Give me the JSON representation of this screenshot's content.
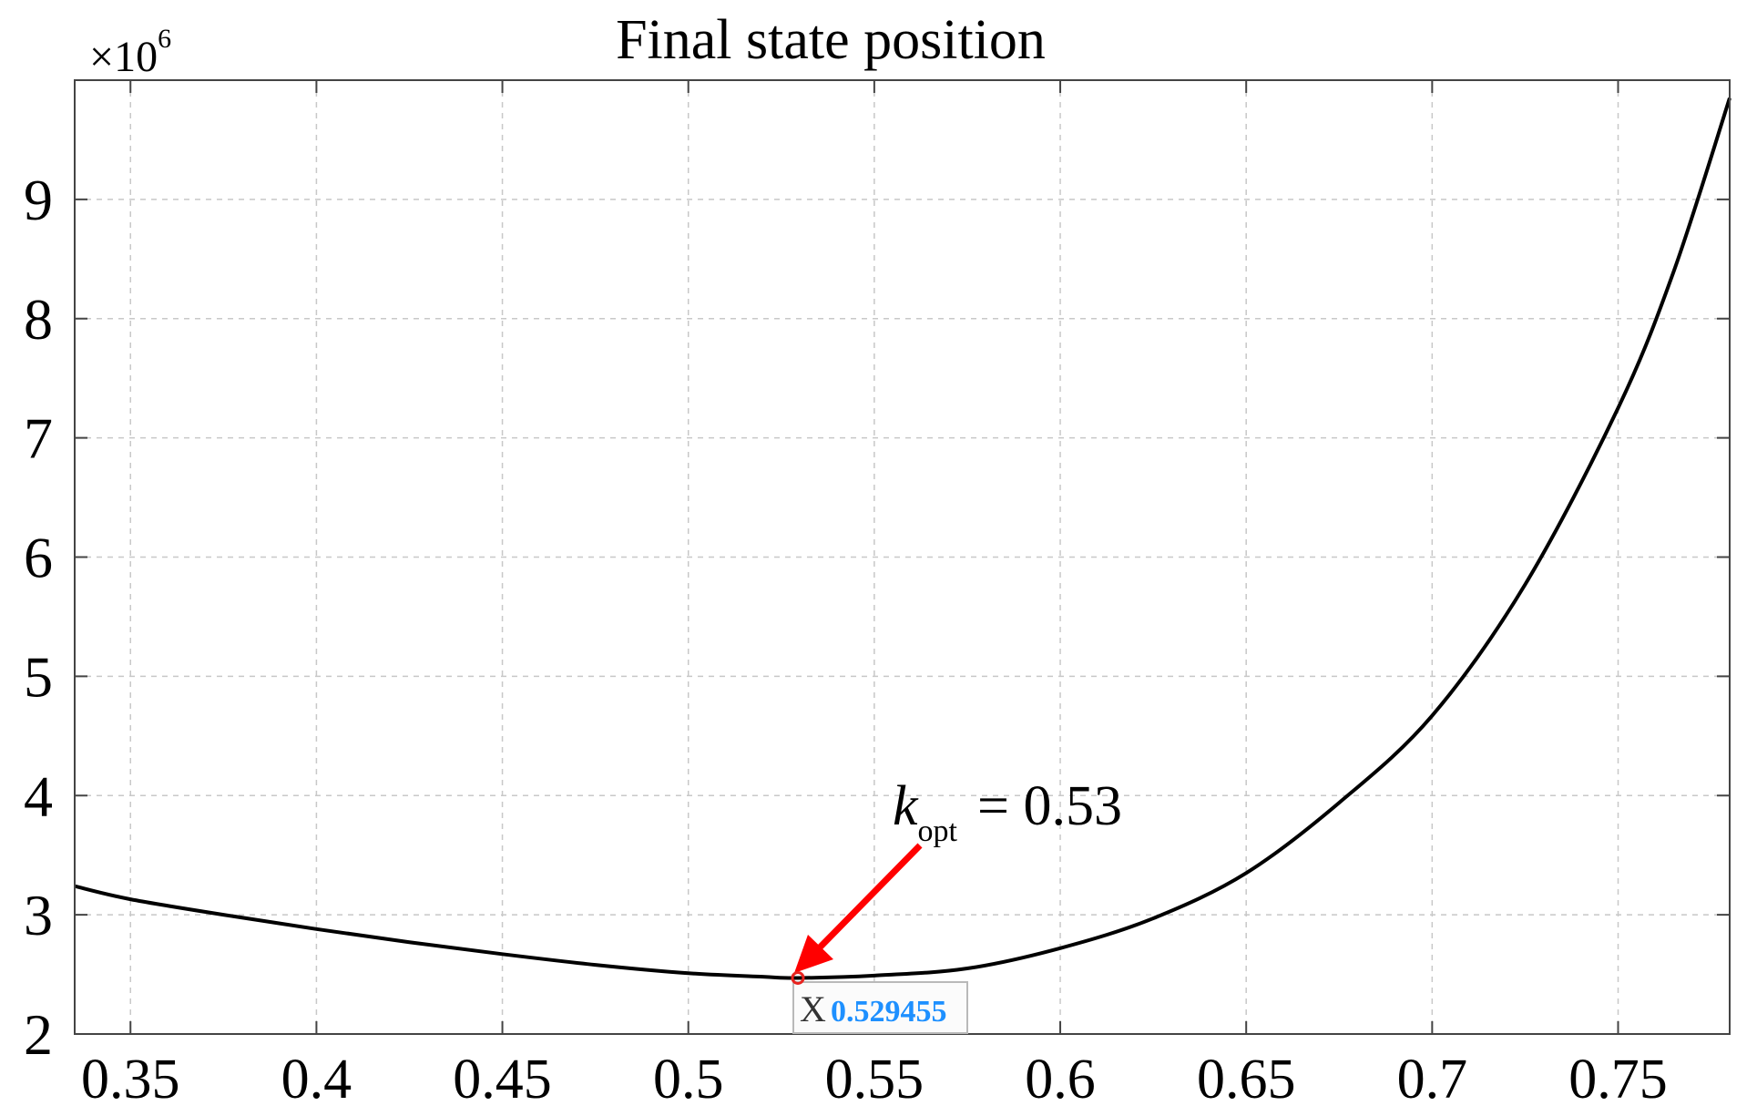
{
  "chart_data": {
    "type": "line",
    "title": "Final state position",
    "xlabel": "",
    "ylabel": "",
    "y_exponent_label": {
      "base": "×10",
      "exponent": "6"
    },
    "xlim": [
      0.335,
      0.78
    ],
    "ylim": [
      2,
      10
    ],
    "xticks": [
      "0.35",
      "0.4",
      "0.45",
      "0.5",
      "0.55",
      "0.6",
      "0.65",
      "0.7",
      "0.75"
    ],
    "yticks": [
      "2",
      "3",
      "4",
      "5",
      "6",
      "7",
      "8",
      "9"
    ],
    "grid": true,
    "series": [
      {
        "x": [
          0.335,
          0.35,
          0.375,
          0.4,
          0.425,
          0.45,
          0.475,
          0.5,
          0.52,
          0.529455,
          0.55,
          0.575,
          0.6,
          0.625,
          0.65,
          0.675,
          0.7,
          0.725,
          0.75,
          0.765,
          0.78
        ],
        "y": [
          3.24,
          3.13,
          3.0,
          2.88,
          2.77,
          2.67,
          2.58,
          2.51,
          2.48,
          2.47,
          2.49,
          2.55,
          2.72,
          2.97,
          3.35,
          3.94,
          4.67,
          5.77,
          7.25,
          8.4,
          9.85
        ],
        "color": "#000000"
      }
    ],
    "marker": {
      "x": 0.529455,
      "y": 2.47,
      "color": "#e8231f"
    },
    "annotation": {
      "symbol": "k",
      "subscript": "opt",
      "text": "= 0.53",
      "arrow_color": "#ff0000"
    },
    "datatip": {
      "label": "X",
      "value": "0.529455",
      "value_color": "#1e90ff"
    }
  }
}
